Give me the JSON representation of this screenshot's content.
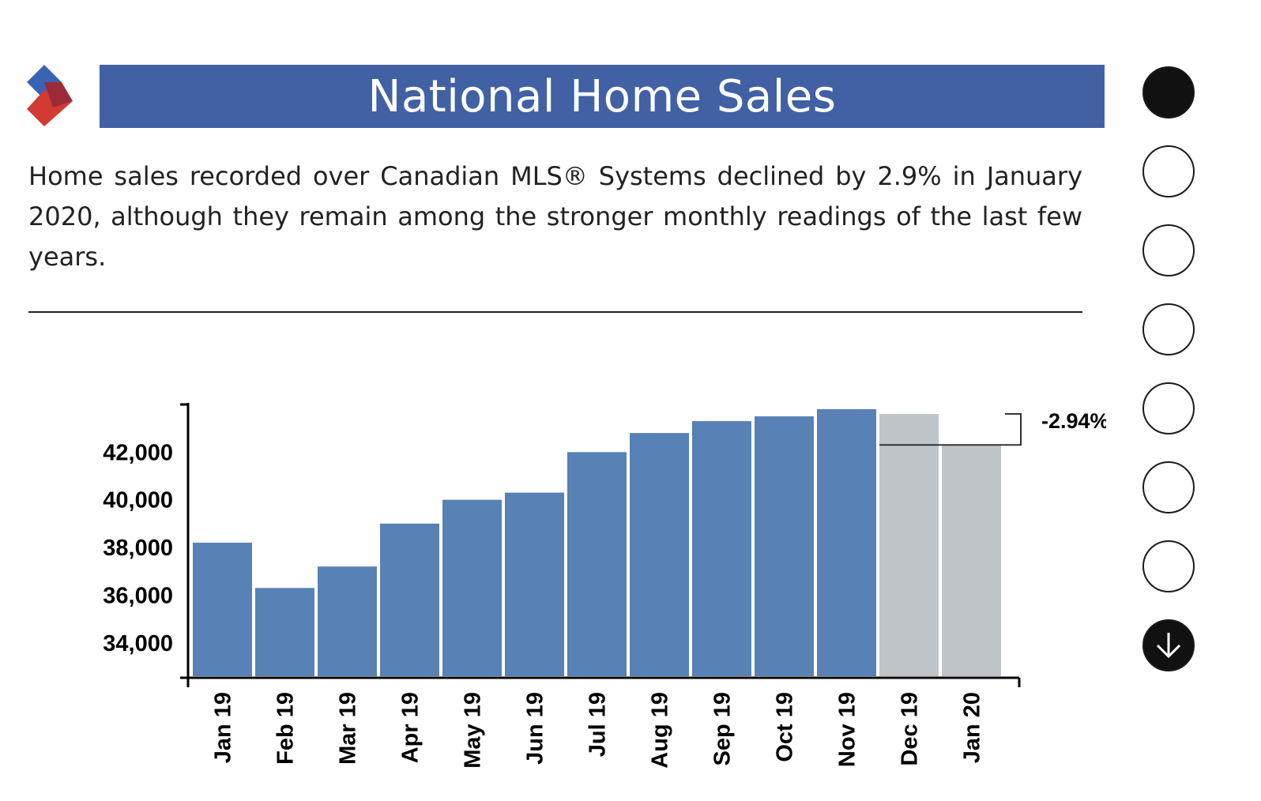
{
  "header": {
    "title": "National Home Sales"
  },
  "description": "Home sales recorded over Canadian MLS® Systems declined by 2.9% in January 2020, although they remain among the stronger monthly readings of the last few years.",
  "colors": {
    "title_bar": "#4161a4",
    "bar_main": "#5881b5",
    "bar_highlight": "#c0c5c9",
    "logo_blue": "#3b63b4",
    "logo_red": "#d33a32"
  },
  "nav": {
    "dots": 7,
    "active_index": 0,
    "icons": [
      "circle-icon",
      "arrow-down-icon"
    ]
  },
  "chart_data": {
    "type": "bar",
    "categories": [
      "Jan 19",
      "Feb 19",
      "Mar 19",
      "Apr 19",
      "May 19",
      "Jun 19",
      "Jul 19",
      "Aug 19",
      "Sep 19",
      "Oct 19",
      "Nov 19",
      "Dec 19",
      "Jan 20"
    ],
    "values": [
      38200,
      36300,
      37200,
      39000,
      40000,
      40300,
      42000,
      42800,
      43300,
      43500,
      43800,
      43600,
      42300
    ],
    "highlighted": [
      "Dec 19",
      "Jan 20"
    ],
    "yticks": [
      34000,
      36000,
      38000,
      40000,
      42000
    ],
    "ytick_labels": [
      "34,000",
      "36,000",
      "38,000",
      "40,000",
      "42,000"
    ],
    "ylim": [
      32600,
      43800
    ],
    "annotation": {
      "text": "-2.94%",
      "from": "Dec 19",
      "to": "Jan 20"
    },
    "title": "",
    "xlabel": "",
    "ylabel": "",
    "grid": false
  }
}
